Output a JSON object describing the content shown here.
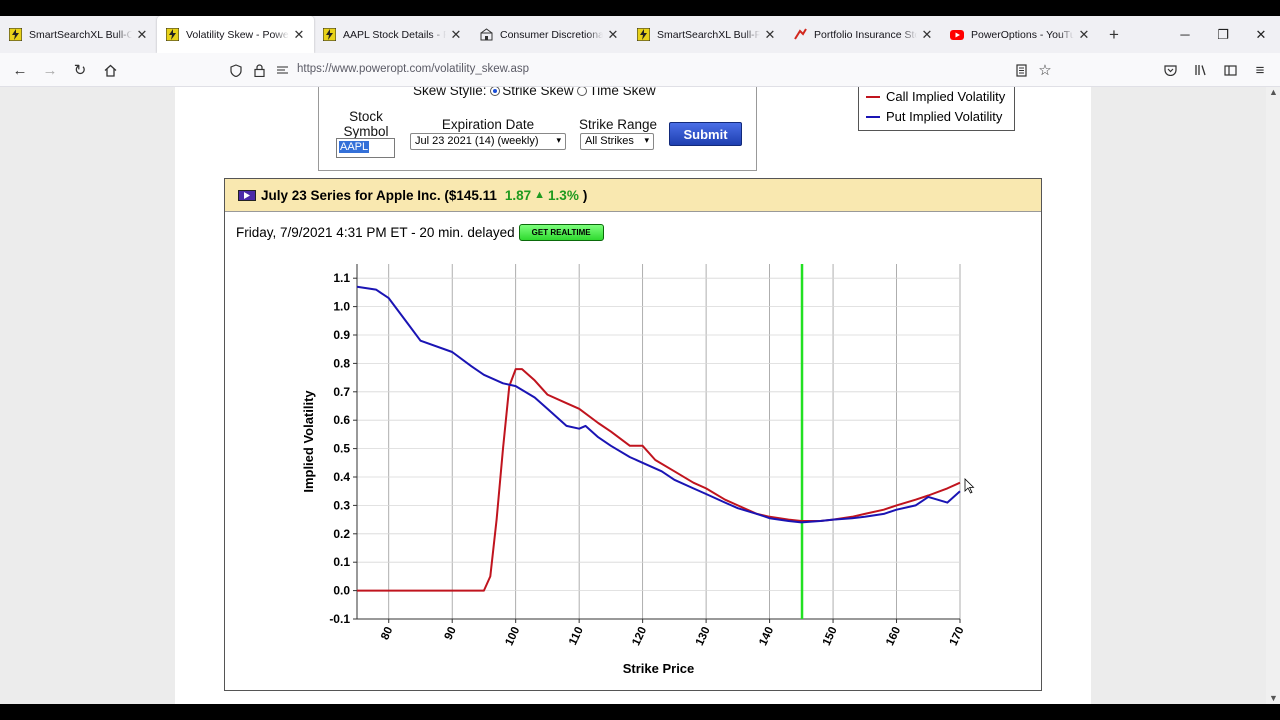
{
  "browser": {
    "tabs": [
      {
        "title": "SmartSearchXL Bull-Call",
        "icon": "poweropt-icon",
        "active": false
      },
      {
        "title": "Volatility Skew - PowerOpt",
        "icon": "poweropt-icon",
        "active": true
      },
      {
        "title": "AAPL Stock Details - PowerOpt",
        "icon": "poweropt-icon",
        "active": false
      },
      {
        "title": "Consumer Discretionary",
        "icon": "sector-icon",
        "active": false
      },
      {
        "title": "SmartSearchXL Bull-Put Credit",
        "icon": "poweropt-icon",
        "active": false
      },
      {
        "title": "Portfolio Insurance Stop",
        "icon": "insurance-icon",
        "active": false
      },
      {
        "title": "PowerOptions - YouTube",
        "icon": "youtube-icon",
        "active": false
      }
    ],
    "url": "https://www.poweropt.com/volatility_skew.asp"
  },
  "form": {
    "skew_style_label": "Skew Stylie:",
    "strike_skew_label": "Strike Skew",
    "time_skew_label": "Time Skew",
    "stock_symbol_label_1": "Stock",
    "stock_symbol_label_2": "Symbol",
    "stock_symbol_value": "AAPL",
    "expiration_label": "Expiration Date",
    "expiration_value": "Jul 23 2021 (14) (weekly)",
    "strike_range_label": "Strike Range",
    "strike_range_value": "All Strikes",
    "submit_label": "Submit"
  },
  "legend": {
    "call_label": "Call Implied Volatility",
    "put_label": "Put Implied Volatility",
    "call_color": "#c0141e",
    "put_color": "#1a14b4"
  },
  "series_header": {
    "title": "July 23 Series for Apple Inc. ($145.11",
    "change": "1.87",
    "change_pct": "1.3%",
    "close": ")"
  },
  "timestamp": {
    "text": "Friday, 7/9/2021 4:31 PM ET - 20 min. delayed",
    "realtime_label": "GET REALTIME"
  },
  "chart_data": {
    "type": "line",
    "xlabel": "Strike Price",
    "ylabel": "Implied Volatility",
    "xlim": [
      75,
      170
    ],
    "ylim": [
      -0.1,
      1.15
    ],
    "xticks": [
      80,
      90,
      100,
      110,
      120,
      130,
      140,
      150,
      160,
      170
    ],
    "yticks": [
      -0.1,
      0.0,
      0.1,
      0.2,
      0.3,
      0.4,
      0.5,
      0.6,
      0.7,
      0.8,
      0.9,
      1.0,
      1.1
    ],
    "ytick_labels": [
      "-0.1",
      "0.0",
      "0.1",
      "0.2",
      "0.3",
      "0.4",
      "0.5",
      "0.6",
      "0.7",
      "0.8",
      "0.9",
      "1.0",
      "1.1"
    ],
    "current_price": 145.11,
    "current_price_color": "#22e022",
    "grid": true,
    "series": [
      {
        "name": "Call Implied Volatility",
        "color": "#c0141e",
        "x": [
          75,
          80,
          85,
          90,
          95,
          96,
          97,
          98,
          99,
          100,
          101,
          103,
          105,
          108,
          110,
          113,
          115,
          118,
          120,
          122,
          125,
          128,
          130,
          133,
          135,
          138,
          140,
          143,
          145,
          148,
          150,
          153,
          155,
          158,
          160,
          163,
          165,
          168,
          170
        ],
        "y": [
          0.0,
          0.0,
          0.0,
          0.0,
          0.0,
          0.05,
          0.25,
          0.5,
          0.72,
          0.78,
          0.78,
          0.74,
          0.69,
          0.66,
          0.64,
          0.59,
          0.56,
          0.51,
          0.51,
          0.46,
          0.42,
          0.38,
          0.36,
          0.32,
          0.3,
          0.27,
          0.26,
          0.25,
          0.245,
          0.245,
          0.25,
          0.26,
          0.27,
          0.285,
          0.3,
          0.32,
          0.335,
          0.36,
          0.38
        ]
      },
      {
        "name": "Put Implied Volatility",
        "color": "#1a14b4",
        "x": [
          75,
          78,
          80,
          83,
          85,
          90,
          93,
          95,
          98,
          100,
          103,
          105,
          108,
          110,
          111,
          113,
          115,
          118,
          120,
          123,
          125,
          128,
          130,
          133,
          135,
          138,
          140,
          143,
          145,
          148,
          150,
          153,
          155,
          158,
          160,
          163,
          165,
          168,
          170
        ],
        "y": [
          1.07,
          1.06,
          1.03,
          0.94,
          0.88,
          0.84,
          0.79,
          0.76,
          0.73,
          0.72,
          0.68,
          0.64,
          0.58,
          0.57,
          0.58,
          0.54,
          0.51,
          0.47,
          0.45,
          0.42,
          0.39,
          0.36,
          0.34,
          0.31,
          0.29,
          0.27,
          0.255,
          0.245,
          0.24,
          0.245,
          0.25,
          0.255,
          0.26,
          0.27,
          0.285,
          0.3,
          0.33,
          0.31,
          0.35
        ]
      }
    ]
  }
}
